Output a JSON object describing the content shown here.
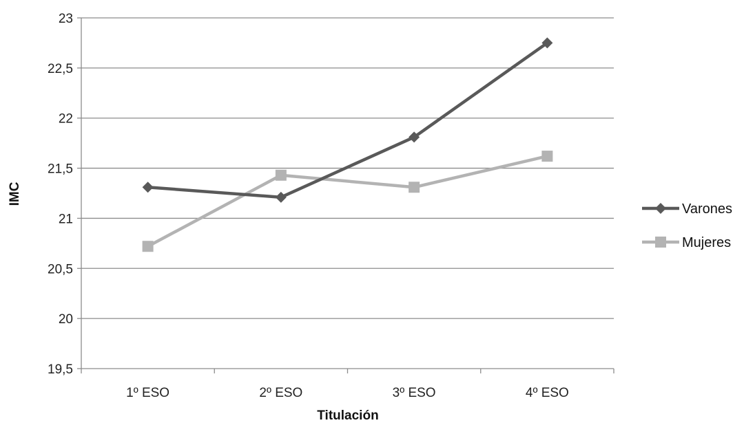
{
  "chart_data": {
    "type": "line",
    "title": "",
    "xlabel": "Titulación",
    "ylabel": "IMC",
    "categories": [
      "1º ESO",
      "2º ESO",
      "3º ESO",
      "4º ESO"
    ],
    "ylim": [
      19.5,
      23
    ],
    "yticks": [
      19.5,
      20,
      20.5,
      21,
      21.5,
      22,
      22.5,
      23
    ],
    "ytick_labels": [
      "19,5",
      "20",
      "20,5",
      "21",
      "21,5",
      "22",
      "22,5",
      "23"
    ],
    "grid": true,
    "legend_position": "right",
    "series": [
      {
        "name": "Varones",
        "values": [
          21.31,
          21.21,
          21.81,
          22.75
        ],
        "color": "#595959",
        "marker": "diamond"
      },
      {
        "name": "Mujeres",
        "values": [
          20.72,
          21.43,
          21.31,
          21.62
        ],
        "color": "#b3b3b3",
        "marker": "square"
      }
    ]
  }
}
